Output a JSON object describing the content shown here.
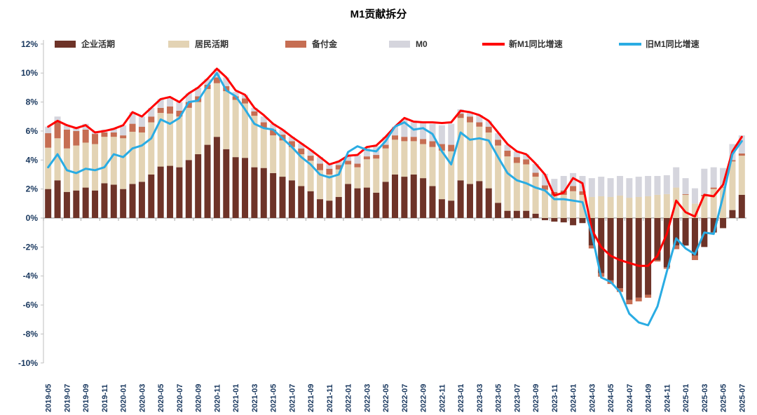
{
  "title": "M1贡献拆分",
  "colors": {
    "corp_demand": "#6E3328",
    "household_demand": "#E3D3B4",
    "reserves": "#C66E53",
    "m0": "#D5D5DD",
    "new_m1_line": "#FF0000",
    "old_m1_line": "#2AACE3",
    "axis_label": "#17365d",
    "axis_line": "#bfbfbf",
    "baseline": "#a6a6a6"
  },
  "legend": [
    {
      "label": "企业活期",
      "type": "swatch",
      "color": "#6E3328"
    },
    {
      "label": "居民活期",
      "type": "swatch",
      "color": "#E3D3B4"
    },
    {
      "label": "备付金",
      "type": "swatch",
      "color": "#C66E53"
    },
    {
      "label": "M0",
      "type": "swatch",
      "color": "#D5D5DD"
    },
    {
      "label": "新M1同比增速",
      "type": "line",
      "color": "#FF0000"
    },
    {
      "label": "旧M1同比增速",
      "type": "line",
      "color": "#2AACE3"
    }
  ],
  "y_axis": {
    "tick_labels": [
      "12%",
      "10%",
      "8%",
      "6%",
      "4%",
      "2%",
      "0%",
      "-2%",
      "-4%",
      "-6%",
      "-8%",
      "-10%"
    ],
    "tick_values": [
      12,
      10,
      8,
      6,
      4,
      2,
      0,
      -2,
      -4,
      -6,
      -8,
      -10
    ]
  },
  "chart_data": {
    "type": "combo-stacked-bar-line",
    "title": "M1贡献拆分",
    "ylim": [
      -10,
      12
    ],
    "label_every": 2,
    "legend_position": "top",
    "grid": false,
    "categories": [
      "2019-05",
      "2019-06",
      "2019-07",
      "2019-08",
      "2019-09",
      "2019-10",
      "2019-11",
      "2019-12",
      "2020-01",
      "2020-02",
      "2020-03",
      "2020-04",
      "2020-05",
      "2020-06",
      "2020-07",
      "2020-08",
      "2020-09",
      "2020-10",
      "2020-11",
      "2020-12",
      "2021-01",
      "2021-02",
      "2021-03",
      "2021-04",
      "2021-05",
      "2021-06",
      "2021-07",
      "2021-08",
      "2021-09",
      "2021-10",
      "2021-11",
      "2021-12",
      "2022-01",
      "2022-02",
      "2022-03",
      "2022-04",
      "2022-05",
      "2022-06",
      "2022-07",
      "2022-08",
      "2022-09",
      "2022-10",
      "2022-11",
      "2022-12",
      "2023-01",
      "2023-02",
      "2023-03",
      "2023-04",
      "2023-05",
      "2023-06",
      "2023-07",
      "2023-08",
      "2023-09",
      "2023-10",
      "2023-11",
      "2023-12",
      "2024-01",
      "2024-02",
      "2024-03",
      "2024-04",
      "2024-05",
      "2024-06",
      "2024-07",
      "2024-08",
      "2024-09",
      "2024-10",
      "2024-11",
      "2024-12",
      "2025-01",
      "2025-02",
      "2025-03",
      "2025-04",
      "2025-05",
      "2025-06",
      "2025-07"
    ],
    "series": [
      {
        "name": "企业活期",
        "type": "bar",
        "color": "#6E3328",
        "values": [
          2.0,
          2.6,
          1.8,
          1.9,
          2.1,
          1.9,
          2.4,
          2.3,
          2.0,
          2.35,
          2.5,
          3.0,
          3.55,
          3.6,
          3.5,
          4.0,
          4.4,
          5.05,
          5.6,
          4.75,
          4.2,
          4.15,
          3.5,
          3.45,
          3.1,
          2.85,
          2.6,
          2.2,
          1.85,
          1.3,
          1.2,
          1.45,
          2.35,
          2.05,
          2.1,
          1.75,
          2.5,
          3.0,
          2.85,
          3.0,
          2.75,
          2.2,
          1.3,
          1.2,
          2.6,
          2.35,
          2.55,
          2.05,
          1.05,
          0.5,
          0.5,
          0.5,
          0.3,
          -0.15,
          -0.25,
          -0.3,
          -0.5,
          -0.35,
          -1.9,
          -3.8,
          -4.3,
          -4.85,
          -5.65,
          -5.5,
          -5.3,
          -2.9,
          -3.4,
          -1.9,
          -1.9,
          -2.6,
          -2.0,
          -1.0,
          -0.7,
          0.55,
          1.6
        ]
      },
      {
        "name": "居民活期",
        "type": "bar",
        "color": "#E3D3B4",
        "values": [
          2.85,
          2.9,
          3.0,
          3.1,
          3.1,
          3.2,
          3.2,
          3.3,
          3.5,
          3.6,
          3.4,
          3.6,
          3.7,
          3.6,
          3.5,
          3.6,
          3.6,
          3.85,
          3.7,
          4.0,
          3.95,
          3.75,
          3.55,
          2.75,
          2.6,
          2.5,
          2.3,
          2.2,
          2.1,
          2.0,
          1.8,
          1.9,
          1.35,
          1.45,
          1.95,
          2.35,
          2.3,
          2.4,
          2.45,
          2.3,
          2.35,
          2.7,
          3.35,
          3.4,
          4.3,
          4.25,
          3.75,
          3.85,
          3.95,
          3.75,
          3.3,
          3.2,
          2.55,
          1.95,
          1.55,
          1.6,
          1.85,
          1.6,
          1.45,
          1.5,
          1.45,
          1.55,
          1.4,
          1.45,
          1.5,
          1.6,
          1.65,
          2.1,
          1.6,
          1.0,
          1.5,
          2.0,
          2.1,
          3.35,
          2.7
        ]
      },
      {
        "name": "备付金",
        "type": "bar",
        "color": "#C66E53",
        "values": [
          1.0,
          1.2,
          1.3,
          1.0,
          0.9,
          0.7,
          0.3,
          0.3,
          0.2,
          0.55,
          0.4,
          0.4,
          0.35,
          0.5,
          0.4,
          0.4,
          0.4,
          0.3,
          0.4,
          0.35,
          0.25,
          0.35,
          0.3,
          0.4,
          0.4,
          0.4,
          0.4,
          0.4,
          0.35,
          0.45,
          0.4,
          0.3,
          0.25,
          0.25,
          0.2,
          0.25,
          0.25,
          0.3,
          0.3,
          0.3,
          0.35,
          0.4,
          0.45,
          0.45,
          0.3,
          0.4,
          0.3,
          0.4,
          0.4,
          0.4,
          0.4,
          0.35,
          0.27,
          0.3,
          0.25,
          0.3,
          0.35,
          0.25,
          -0.2,
          -0.25,
          -0.25,
          -0.25,
          -0.3,
          -0.25,
          -0.2,
          -0.1,
          -0.1,
          -0.25,
          0.05,
          -0.3,
          0.1,
          0.1,
          0.05,
          0.1,
          0.15
        ]
      },
      {
        "name": "M0",
        "type": "bar",
        "color": "#D5D5DD",
        "values": [
          0.45,
          0.3,
          0.3,
          0.3,
          0.4,
          0.2,
          0.2,
          0.3,
          0.7,
          0.8,
          0.7,
          0.6,
          0.6,
          0.65,
          0.6,
          0.6,
          0.6,
          0.4,
          0.6,
          0.6,
          0.3,
          0.25,
          0.25,
          0.4,
          0.4,
          0.35,
          0.3,
          0.35,
          0.4,
          0.45,
          0.35,
          0.3,
          0.35,
          0.6,
          0.65,
          0.6,
          0.55,
          0.6,
          1.25,
          1.05,
          1.1,
          1.2,
          1.3,
          1.45,
          0.3,
          0.3,
          0.5,
          0.4,
          0.45,
          0.4,
          0.4,
          0.35,
          0.6,
          0.8,
          0.9,
          1.0,
          0.9,
          1.05,
          1.3,
          1.35,
          1.3,
          1.35,
          1.35,
          1.4,
          1.4,
          1.3,
          1.3,
          1.4,
          1.1,
          1.05,
          1.8,
          1.4,
          1.3,
          1.1,
          1.25
        ]
      },
      {
        "name": "新M1同比增速",
        "type": "line",
        "color": "#FF0000",
        "values": [
          6.3,
          6.7,
          6.4,
          6.2,
          6.4,
          5.9,
          6.0,
          6.15,
          6.4,
          7.3,
          7.0,
          7.6,
          8.2,
          8.35,
          8.0,
          8.6,
          9.0,
          9.6,
          10.3,
          9.7,
          8.8,
          8.5,
          7.6,
          7.1,
          6.5,
          6.1,
          5.6,
          5.15,
          4.7,
          4.2,
          3.7,
          3.9,
          4.3,
          4.35,
          4.9,
          5.0,
          5.6,
          6.3,
          6.9,
          6.65,
          6.6,
          6.6,
          6.55,
          6.6,
          7.4,
          7.3,
          7.1,
          6.7,
          5.9,
          5.1,
          4.6,
          4.4,
          3.75,
          3.0,
          1.55,
          1.75,
          2.75,
          2.4,
          -0.8,
          -2.0,
          -2.6,
          -2.9,
          -3.1,
          -3.3,
          -3.3,
          -2.6,
          -1.1,
          1.2,
          0.4,
          0.1,
          1.6,
          1.5,
          2.3,
          4.6,
          5.6
        ]
      },
      {
        "name": "旧M1同比增速",
        "type": "line",
        "color": "#2AACE3",
        "values": [
          3.5,
          4.4,
          3.3,
          3.1,
          3.4,
          3.3,
          3.5,
          4.4,
          4.2,
          4.8,
          5.0,
          5.5,
          6.8,
          6.5,
          6.9,
          8.0,
          8.1,
          9.1,
          10.0,
          8.8,
          8.4,
          7.5,
          6.5,
          6.2,
          6.1,
          5.5,
          4.9,
          4.2,
          3.7,
          3.0,
          2.8,
          3.0,
          4.55,
          4.95,
          4.7,
          4.6,
          5.3,
          6.3,
          6.6,
          6.1,
          6.2,
          5.8,
          4.6,
          3.7,
          5.9,
          5.4,
          5.5,
          5.35,
          4.2,
          3.1,
          2.6,
          2.4,
          2.1,
          1.9,
          1.3,
          1.3,
          1.2,
          1.1,
          -1.1,
          -4.1,
          -4.4,
          -5.1,
          -6.6,
          -7.2,
          -7.4,
          -6.1,
          -3.7,
          -1.4,
          -2.1,
          -2.5,
          -1.0,
          -1.1,
          1.5,
          4.4,
          5.3
        ]
      }
    ]
  }
}
